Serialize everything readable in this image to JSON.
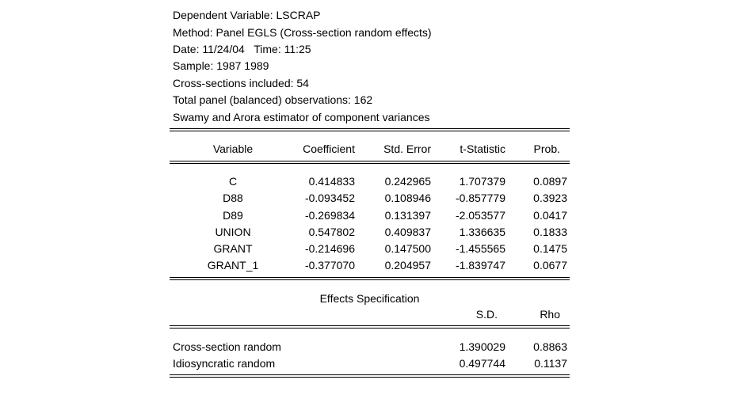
{
  "header": {
    "lines": [
      "Dependent Variable: LSCRAP",
      "Method: Panel EGLS (Cross-section random effects)",
      "Date: 11/24/04   Time: 11:25",
      "Sample: 1987 1989",
      "Cross-sections included: 54",
      "Total panel (balanced) observations: 162",
      "Swamy and Arora estimator of component variances"
    ]
  },
  "coef_table": {
    "columns": [
      "Variable",
      "Coefficient",
      "Std. Error",
      "t-Statistic",
      "Prob."
    ],
    "rows": [
      [
        "C",
        "0.414833",
        "0.242965",
        "1.707379",
        "0.0897"
      ],
      [
        "D88",
        "-0.093452",
        "0.108946",
        "-0.857779",
        "0.3923"
      ],
      [
        "D89",
        "-0.269834",
        "0.131397",
        "-2.053577",
        "0.0417"
      ],
      [
        "UNION",
        "0.547802",
        "0.409837",
        "1.336635",
        "0.1833"
      ],
      [
        "GRANT",
        "-0.214696",
        "0.147500",
        "-1.455565",
        "0.1475"
      ],
      [
        "GRANT_1",
        "-0.377070",
        "0.204957",
        "-1.839747",
        "0.0677"
      ]
    ]
  },
  "effects": {
    "title": "Effects Specification",
    "columns": [
      "S.D.",
      "Rho"
    ],
    "rows": [
      [
        "Cross-section random",
        "1.390029",
        "0.8863"
      ],
      [
        "Idiosyncratic random",
        "0.497744",
        "0.1137"
      ]
    ]
  }
}
